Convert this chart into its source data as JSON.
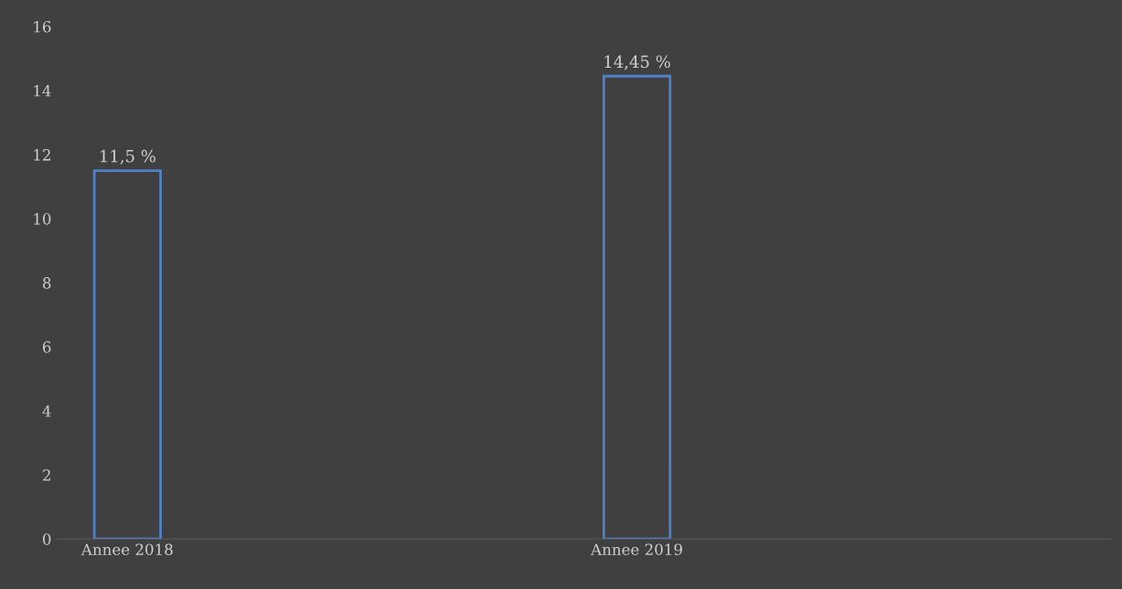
{
  "chart_data": {
    "type": "bar",
    "categories": [
      "Annee 2018",
      "Annee 2019"
    ],
    "values": [
      11.5,
      14.45
    ],
    "value_labels": [
      "11,5 %",
      "14,45 %"
    ],
    "color": "#4f81c7",
    "ylim": [
      0,
      16
    ],
    "yticks": [
      0,
      2,
      4,
      6,
      8,
      10,
      12,
      14,
      16
    ],
    "grid": false,
    "legend": false
  }
}
